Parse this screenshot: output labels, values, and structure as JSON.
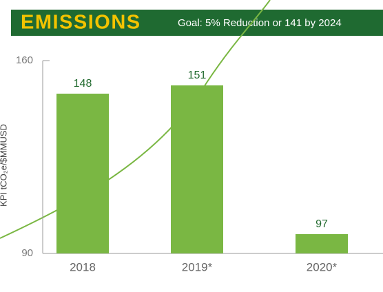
{
  "chart_data": {
    "type": "bar",
    "title": "EMISSIONS",
    "subtitle": "Goal: 5% Reduction or 141 by 2024",
    "y_label": "KPI tCO₂e/$MMUSD",
    "categories": [
      "2018",
      "2019*",
      "2020*"
    ],
    "values": [
      148,
      151,
      97
    ],
    "color": "#7ab743",
    "ylim": [
      90,
      160
    ],
    "yticks": [
      90,
      160
    ]
  }
}
